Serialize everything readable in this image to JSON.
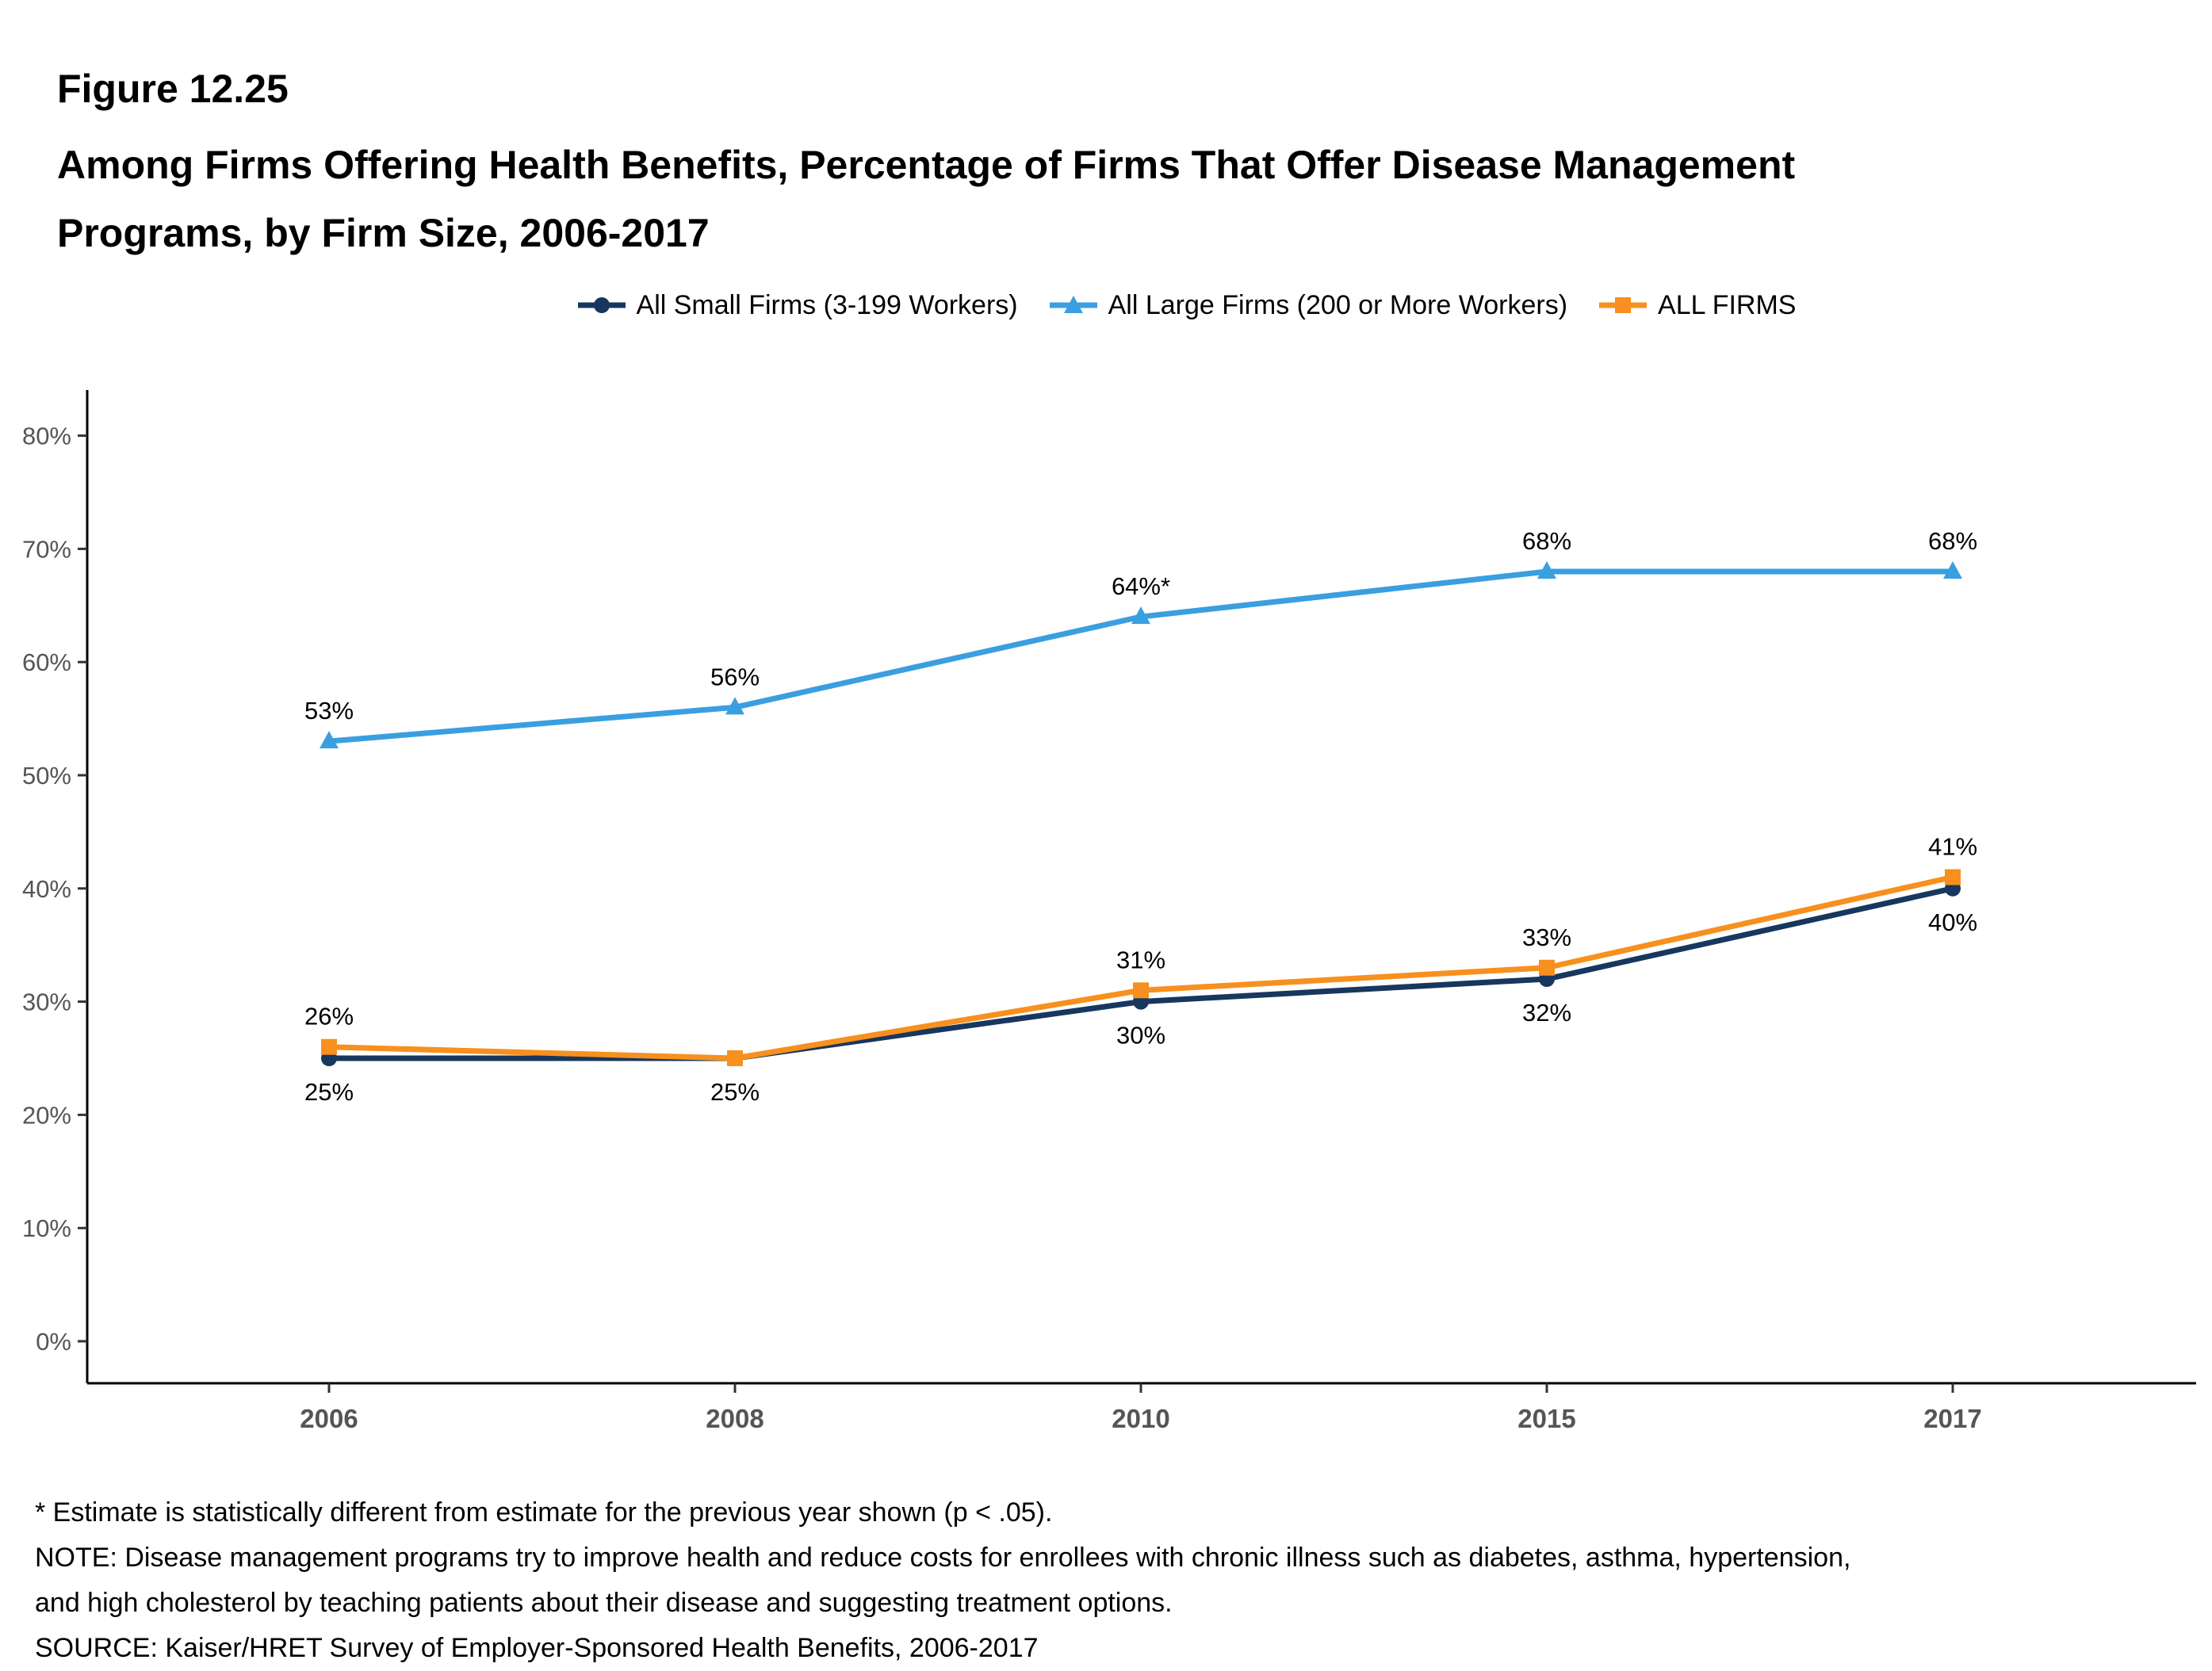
{
  "figure_label": "Figure 12.25",
  "title_line1": "Among Firms Offering Health Benefits, Percentage of Firms That Offer Disease Management",
  "title_line2": "Programs, by Firm Size, 2006-2017",
  "footnotes": {
    "asterisk": "* Estimate is statistically different from estimate for the previous year shown (p < .05).",
    "note_line1": "NOTE: Disease management programs try to improve health and reduce costs for enrollees with chronic illness such as diabetes, asthma, hypertension,",
    "note_line2": "and high cholesterol by teaching patients about their disease and suggesting treatment options.",
    "source": "SOURCE: Kaiser/HRET Survey of Employer-Sponsored Health Benefits, 2006-2017"
  },
  "chart_data": {
    "type": "line",
    "x": [
      "2006",
      "2008",
      "2010",
      "2015",
      "2017"
    ],
    "ylim": [
      0,
      80
    ],
    "yticks": [
      0,
      10,
      20,
      30,
      40,
      50,
      60,
      70,
      80
    ],
    "ytick_labels": [
      "0%",
      "10%",
      "20%",
      "30%",
      "40%",
      "50%",
      "60%",
      "70%",
      "80%"
    ],
    "xlabel": "",
    "ylabel": "",
    "grid": false,
    "legend_position": "top",
    "series": [
      {
        "name": "All Small Firms (3-199 Workers)",
        "marker": "circle",
        "color": "#17375e",
        "values": [
          25,
          25,
          30,
          32,
          40
        ],
        "labels": [
          "25%",
          "25%",
          "30%",
          "32%",
          "40%"
        ],
        "label_position": "below"
      },
      {
        "name": "All Large Firms (200 or More Workers)",
        "marker": "triangle",
        "color": "#3a9fe0",
        "values": [
          53,
          56,
          64,
          68,
          68
        ],
        "labels": [
          "53%",
          "56%",
          "64%*",
          "68%",
          "68%"
        ],
        "label_position": "above"
      },
      {
        "name": "ALL FIRMS",
        "marker": "square",
        "color": "#f7901e",
        "values": [
          26,
          25,
          31,
          33,
          41
        ],
        "labels": [
          "26%",
          "",
          "31%",
          "33%",
          "41%"
        ],
        "label_position": "above"
      }
    ]
  }
}
